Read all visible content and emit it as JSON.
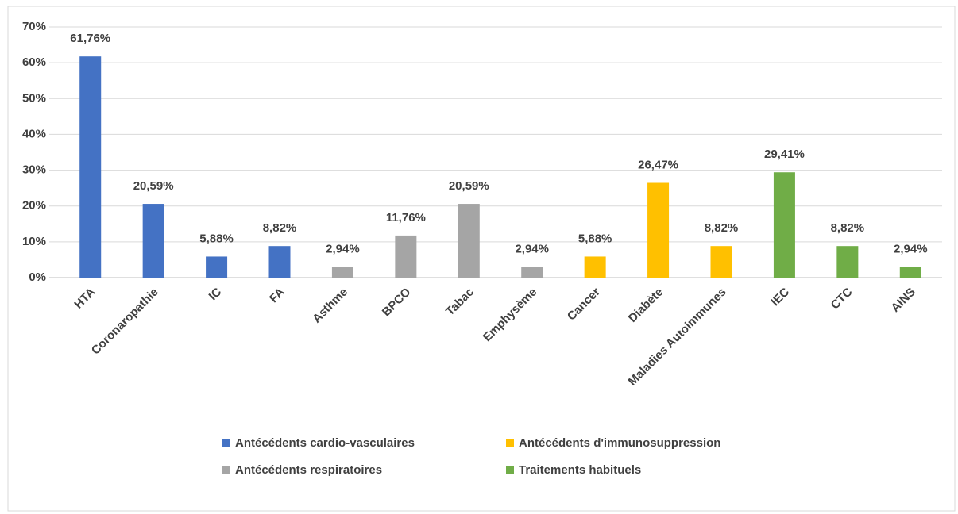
{
  "chart_data": {
    "type": "bar",
    "categories": [
      "HTA",
      "Coronaropathie",
      "IC",
      "FA",
      "Asthme",
      "BPCO",
      "Tabac",
      "Emphysème",
      "Cancer",
      "Diabète",
      "Maladies Autoimmunes",
      "IEC",
      "CTC",
      "AINS"
    ],
    "series": [
      {
        "name": "Antécédents cardio-vasculaires",
        "color": "#4472c4",
        "values": [
          61.76,
          20.59,
          5.88,
          8.82,
          null,
          null,
          null,
          null,
          null,
          null,
          null,
          null,
          null,
          null
        ],
        "value_labels": [
          "61,76%",
          "20,59%",
          "5,88%",
          "8,82%",
          null,
          null,
          null,
          null,
          null,
          null,
          null,
          null,
          null,
          null
        ]
      },
      {
        "name": "Antécédents respiratoires",
        "color": "#a5a5a5",
        "values": [
          null,
          null,
          null,
          null,
          2.94,
          11.76,
          20.59,
          2.94,
          null,
          null,
          null,
          null,
          null,
          null
        ],
        "value_labels": [
          null,
          null,
          null,
          null,
          "2,94%",
          "11,76%",
          "20,59%",
          "2,94%",
          null,
          null,
          null,
          null,
          null,
          null
        ]
      },
      {
        "name": "Antécédents d'immunosuppression",
        "color": "#ffc000",
        "values": [
          null,
          null,
          null,
          null,
          null,
          null,
          null,
          null,
          5.88,
          26.47,
          8.82,
          null,
          null,
          null
        ],
        "value_labels": [
          null,
          null,
          null,
          null,
          null,
          null,
          null,
          null,
          "5,88%",
          "26,47%",
          "8,82%",
          null,
          null,
          null
        ]
      },
      {
        "name": "Traitements habituels",
        "color": "#70ad47",
        "values": [
          null,
          null,
          null,
          null,
          null,
          null,
          null,
          null,
          null,
          null,
          null,
          29.41,
          8.82,
          2.94
        ],
        "value_labels": [
          null,
          null,
          null,
          null,
          null,
          null,
          null,
          null,
          null,
          null,
          null,
          "29,41%",
          "8,82%",
          "2,94%"
        ]
      }
    ],
    "ylim": [
      0,
      70
    ],
    "yticks": [
      {
        "value": 0,
        "label": "0%"
      },
      {
        "value": 10,
        "label": "10%"
      },
      {
        "value": 20,
        "label": "20%"
      },
      {
        "value": 30,
        "label": "30%"
      },
      {
        "value": 40,
        "label": "40%"
      },
      {
        "value": 50,
        "label": "50%"
      },
      {
        "value": 60,
        "label": "60%"
      },
      {
        "value": 70,
        "label": "70%"
      }
    ],
    "grid": true
  }
}
